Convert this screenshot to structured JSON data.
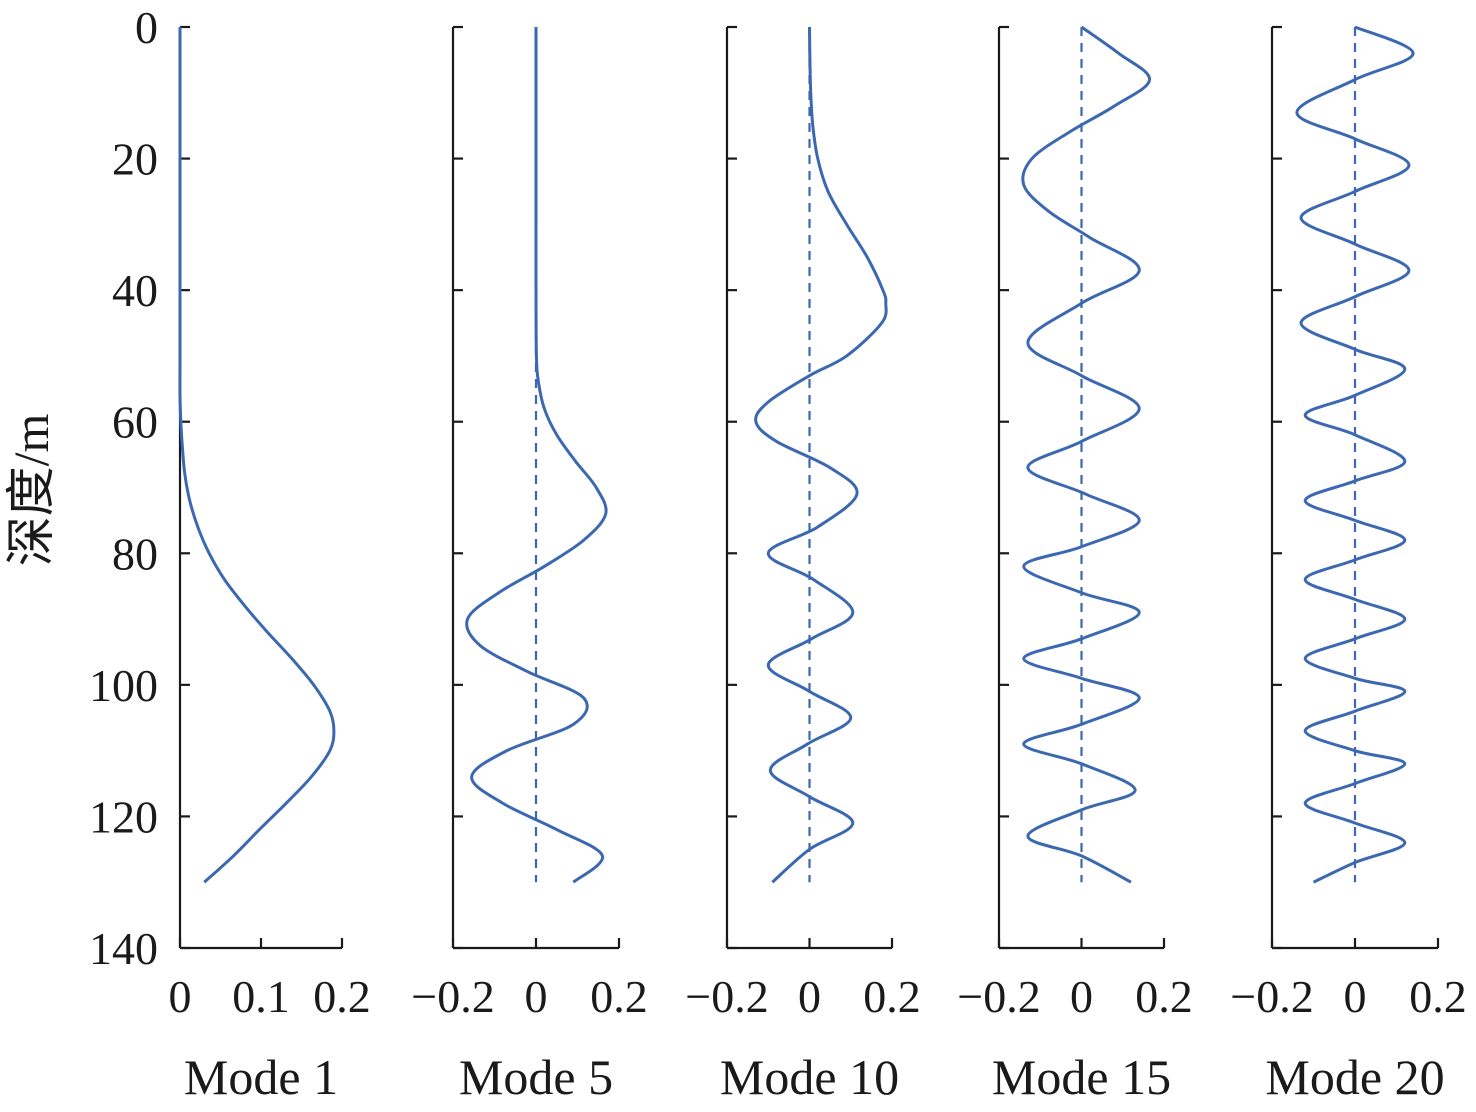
{
  "chart_data": {
    "type": "line",
    "ylabel": "深度/m",
    "ylim": [
      0,
      140
    ],
    "y_reversed": true,
    "y_ticks": [
      "0",
      "20",
      "40",
      "60",
      "80",
      "100",
      "120",
      "140"
    ],
    "panels": [
      {
        "name": "Mode 1",
        "xlim": [
          0,
          0.2
        ],
        "x_ticks": [
          "0",
          "0.1",
          "0.2"
        ],
        "zero_line": false,
        "depth": [
          0,
          10,
          20,
          30,
          40,
          50,
          56,
          60,
          64,
          68,
          72,
          76,
          80,
          84,
          88,
          92,
          96,
          100,
          104,
          107,
          110,
          114,
          118,
          122,
          126,
          130
        ],
        "values": [
          0,
          0,
          0,
          0,
          0,
          0,
          0,
          0.001,
          0.003,
          0.006,
          0.012,
          0.022,
          0.036,
          0.055,
          0.08,
          0.108,
          0.138,
          0.165,
          0.185,
          0.19,
          0.185,
          0.162,
          0.131,
          0.098,
          0.066,
          0.03
        ]
      },
      {
        "name": "Mode 5",
        "xlim": [
          -0.2,
          0.2
        ],
        "x_ticks": [
          "−0.2",
          "0",
          "0.2"
        ],
        "zero_line": true,
        "depth": [
          0,
          10,
          20,
          30,
          40,
          50,
          54,
          58,
          62,
          66,
          70,
          74,
          78,
          82,
          86,
          90,
          94,
          98,
          102,
          106,
          110,
          114,
          118,
          122,
          126,
          130
        ],
        "values": [
          0,
          0,
          0,
          0,
          0,
          0.001,
          0.006,
          0.02,
          0.05,
          0.095,
          0.145,
          0.168,
          0.115,
          0.02,
          -0.09,
          -0.165,
          -0.135,
          -0.02,
          0.115,
          0.09,
          -0.07,
          -0.155,
          -0.08,
          0.05,
          0.16,
          0.09
        ]
      },
      {
        "name": "Mode 10",
        "xlim": [
          -0.2,
          0.2
        ],
        "x_ticks": [
          "−0.2",
          "0",
          "0.2"
        ],
        "zero_line": true,
        "depth": [
          0,
          5,
          10,
          15,
          20,
          25,
          30,
          35,
          40,
          42,
          45,
          50,
          53,
          57,
          60,
          63,
          67,
          71,
          76,
          80,
          84,
          89,
          93,
          97,
          101,
          105,
          109,
          113,
          117,
          121,
          125,
          130
        ],
        "values": [
          0,
          0.001,
          0.003,
          0.008,
          0.02,
          0.045,
          0.09,
          0.14,
          0.178,
          0.185,
          0.175,
          0.09,
          0,
          -0.1,
          -0.13,
          -0.08,
          0.05,
          0.115,
          0.02,
          -0.1,
          0.01,
          0.105,
          0.005,
          -0.1,
          0,
          0.1,
          -0.005,
          -0.095,
          0,
          0.105,
          0,
          -0.09
        ]
      },
      {
        "name": "Mode 15",
        "xlim": [
          -0.2,
          0.2
        ],
        "x_ticks": [
          "−0.2",
          "0",
          "0.2"
        ],
        "zero_line": true,
        "depth": [
          0,
          4,
          8,
          12,
          16,
          20,
          24,
          28,
          32,
          37,
          42,
          48,
          53,
          58,
          63,
          67,
          71,
          75,
          79,
          82,
          86,
          89,
          93,
          96,
          99,
          102,
          106,
          109,
          112,
          116,
          119,
          123,
          126,
          130
        ],
        "values": [
          0,
          0.09,
          0.165,
          0.08,
          -0.03,
          -0.12,
          -0.14,
          -0.08,
          0.02,
          0.14,
          0,
          -0.13,
          0,
          0.14,
          0,
          -0.13,
          0.01,
          0.14,
          0,
          -0.14,
          0,
          0.14,
          0,
          -0.14,
          0,
          0.14,
          0,
          -0.14,
          0,
          0.13,
          0,
          -0.13,
          0,
          0.12
        ]
      },
      {
        "name": "Mode 20",
        "xlim": [
          -0.2,
          0.2
        ],
        "x_ticks": [
          "−0.2",
          "0",
          "0.2"
        ],
        "zero_line": true,
        "depth": [
          0,
          4,
          8,
          13,
          17,
          21,
          25,
          29,
          33,
          37,
          41,
          45,
          49,
          52,
          56,
          59,
          62,
          66,
          69,
          72,
          75,
          78,
          81,
          84,
          87,
          90,
          93,
          96,
          99,
          101,
          104,
          107,
          110,
          112,
          115,
          118,
          121,
          124,
          127,
          130
        ],
        "values": [
          0,
          0.14,
          0,
          -0.14,
          0,
          0.13,
          0,
          -0.13,
          0,
          0.13,
          0,
          -0.13,
          0,
          0.12,
          0,
          -0.12,
          0,
          0.12,
          0,
          -0.12,
          0,
          0.12,
          0,
          -0.12,
          0,
          0.12,
          0,
          -0.12,
          0,
          0.12,
          0,
          -0.12,
          0,
          0.12,
          0,
          -0.12,
          0,
          0.12,
          0,
          -0.1
        ]
      }
    ]
  }
}
